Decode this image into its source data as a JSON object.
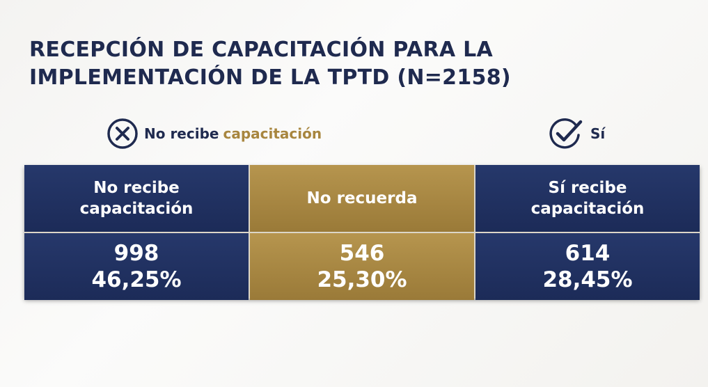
{
  "title": [
    "RECEPCIÓN DE CAPACITACIÓN PARA LA",
    "IMPLEMENTACIÓN DE LA TPTD (N=2158)"
  ],
  "legend": {
    "no_label": "No recibe",
    "no_accent": "capacitación",
    "yes_label": "Sí"
  },
  "table": {
    "columns": [
      {
        "header": [
          "No recibe",
          "capacitación"
        ],
        "count": 998,
        "percent": "46,25%"
      },
      {
        "header": [
          "No recuerda"
        ],
        "count": 546,
        "percent": "25,30%"
      },
      {
        "header": [
          "Sí recibe",
          "capacitación"
        ],
        "count": 614,
        "percent": "28,45%"
      }
    ]
  }
}
